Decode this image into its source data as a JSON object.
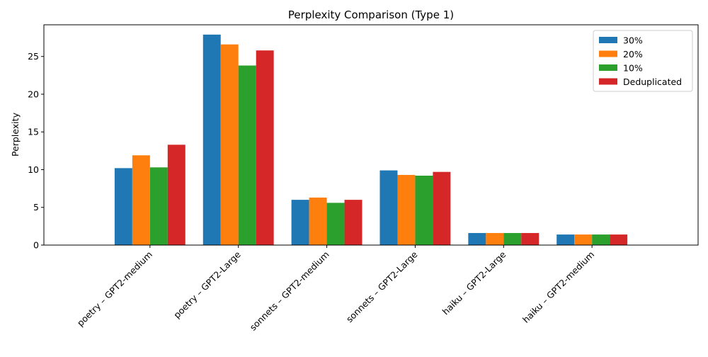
{
  "chart_data": {
    "type": "bar",
    "title": "Perplexity Comparison (Type 1)",
    "xlabel": "",
    "ylabel": "Perplexity",
    "ylim": [
      0,
      29.2
    ],
    "yticks": [
      0,
      5,
      10,
      15,
      20,
      25
    ],
    "grid": false,
    "legend_position": "top-right",
    "categories": [
      "poetry – GPT2-medium",
      "poetry – GPT2-Large",
      "sonnets – GPT2-medium",
      "sonnets – GPT2-Large",
      "haiku – GPT2-Large",
      "haiku – GPT2-medium"
    ],
    "series": [
      {
        "name": "30%",
        "color": "#1f77b4",
        "values": [
          10.2,
          27.9,
          6.0,
          9.9,
          1.6,
          1.4
        ]
      },
      {
        "name": "20%",
        "color": "#ff7f0e",
        "values": [
          11.9,
          26.6,
          6.3,
          9.3,
          1.6,
          1.4
        ]
      },
      {
        "name": "10%",
        "color": "#2ca02c",
        "values": [
          10.3,
          23.8,
          5.6,
          9.2,
          1.6,
          1.4
        ]
      },
      {
        "name": "Deduplicated",
        "color": "#d62728",
        "values": [
          13.3,
          25.8,
          6.0,
          9.7,
          1.6,
          1.4
        ]
      }
    ]
  }
}
